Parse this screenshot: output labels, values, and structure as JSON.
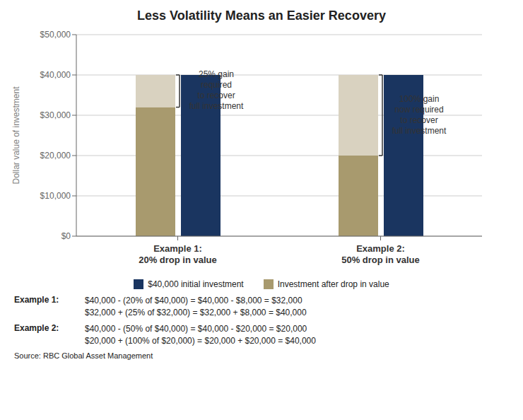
{
  "chart_data": {
    "type": "bar",
    "title": "Less Volatility Means an Easier Recovery",
    "categories": [
      "Example 1:\n20% drop in value",
      "Example 2:\n50% drop in value"
    ],
    "series": [
      {
        "name": "$40,000 initial investment",
        "color": "#1a3560",
        "values": [
          40000,
          40000
        ]
      },
      {
        "name": "Investment after drop in value",
        "color": "#a89a6e",
        "values": [
          32000,
          20000
        ],
        "stacked": true
      },
      {
        "color": "#d9d2c0",
        "values": [
          8000,
          20000
        ],
        "stacked": true
      }
    ],
    "annotations": [
      "25% gain\nrequired\nto recover\nfull investment",
      "100% gain\nnow required\nto recover\nfull investment"
    ],
    "ylabel": "Dollar value of investment",
    "ylim": [
      0,
      50000
    ],
    "yticks": [
      {
        "value": 0,
        "label": "$0"
      },
      {
        "value": 10000,
        "label": "$10,000"
      },
      {
        "value": 20000,
        "label": "$20,000"
      },
      {
        "value": 30000,
        "label": "$30,000"
      },
      {
        "value": 40000,
        "label": "$40,000"
      },
      {
        "value": 50000,
        "label": "$50,000"
      }
    ],
    "grid": true,
    "legend": "bottom",
    "examples": [
      {
        "label": "Example 1:",
        "lines": [
          "$40,000 - (20% of $40,000) = $40,000 - $8,000 = $32,000",
          "$32,000 + (25% of $32,000) = $32,000 + $8,000 = $40,000"
        ]
      },
      {
        "label": "Example 2:",
        "lines": [
          "$40,000 - (50% of $40,000) = $40,000 - $20,000 = $20,000",
          "$20,000 + (100% of $20,000) = $20,000 + $20,000 = $40,000"
        ]
      }
    ],
    "source": "Source: RBC Global Asset Management"
  }
}
